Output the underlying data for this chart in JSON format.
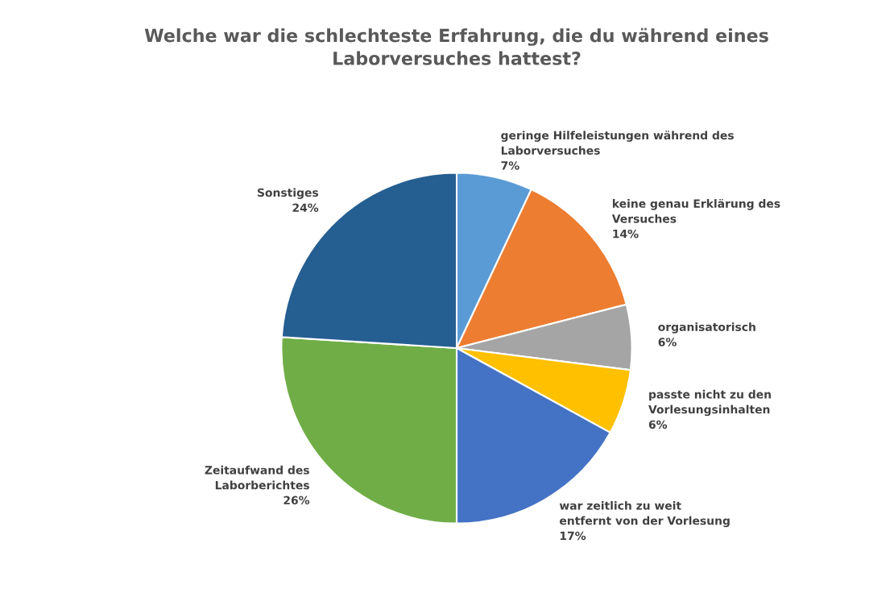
{
  "chart_data": {
    "type": "pie",
    "title": "Welche war die schlechteste Erfahrung, die du während eines\nLaborversuches hattest?",
    "categories": [
      "geringe Hilfeleistungen während des\nLaborversuches",
      "keine genau Erklärung des\nVersuches",
      "organisatorisch",
      "passte nicht zu den\nVorlesungsinhalten",
      "war zeitlich zu weit\nentfernt von der Vorlesung",
      "Zeitaufwand des\nLaborberichtes",
      "Sonstiges"
    ],
    "values": [
      7,
      14,
      6,
      6,
      17,
      26,
      24
    ],
    "value_labels": [
      "7%",
      "14%",
      "6%",
      "6%",
      "17%",
      "26%",
      "24%"
    ],
    "colors": [
      "#5b9bd5",
      "#ed7d31",
      "#a5a5a5",
      "#ffc000",
      "#4472c4",
      "#70ad47",
      "#255e91"
    ],
    "legend": false
  }
}
